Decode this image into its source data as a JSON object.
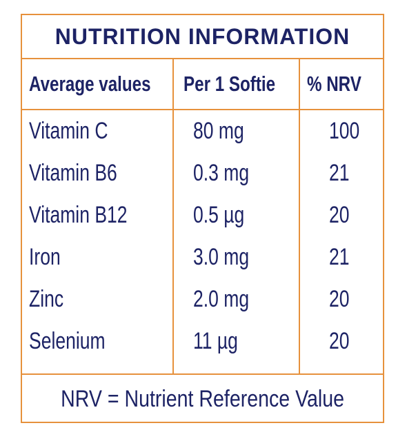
{
  "title": "NUTRITION INFORMATION",
  "headers": {
    "name": "Average values",
    "amount": "Per 1 Softie",
    "nrv": "% NRV"
  },
  "rows": [
    {
      "name": "Vitamin C",
      "amount": "80 mg",
      "nrv": "100"
    },
    {
      "name": "Vitamin B6",
      "amount": "0.3 mg",
      "nrv": "21"
    },
    {
      "name": "Vitamin B12",
      "amount": "0.5 µg",
      "nrv": "20"
    },
    {
      "name": "Iron",
      "amount": "3.0 mg",
      "nrv": "21"
    },
    {
      "name": "Zinc",
      "amount": "2.0 mg",
      "nrv": "20"
    },
    {
      "name": "Selenium",
      "amount": "11 µg",
      "nrv": "20"
    }
  ],
  "footer": "NRV = Nutrient Reference Value",
  "colors": {
    "border": "#e6913c",
    "text": "#1d2365",
    "background": "#ffffff"
  }
}
